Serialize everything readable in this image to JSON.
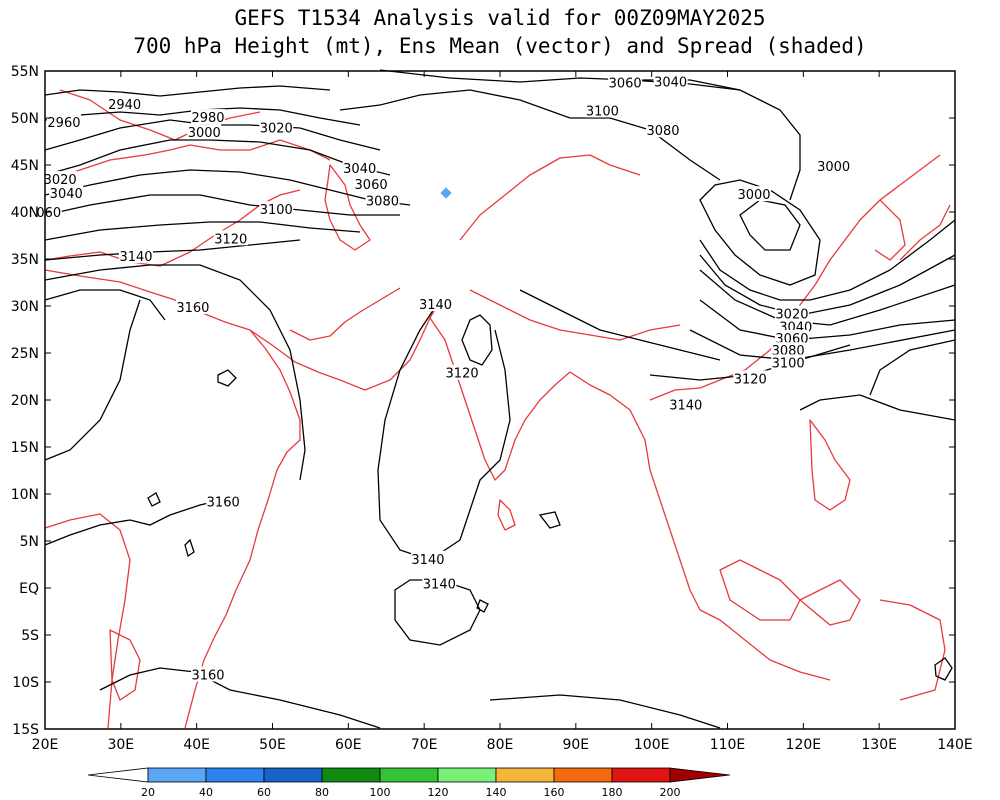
{
  "title": {
    "line1": "GEFS T1534 Analysis valid for 00Z09MAY2025",
    "line2": "700 hPa Height (mt), Ens Mean (vector) and Spread (shaded)"
  },
  "axes": {
    "lat_labels": [
      "55N",
      "50N",
      "45N",
      "40N",
      "35N",
      "30N",
      "25N",
      "20N",
      "15N",
      "10N",
      "5N",
      "EQ",
      "5S",
      "10S",
      "15S"
    ],
    "lon_labels": [
      "20E",
      "30E",
      "40E",
      "50E",
      "60E",
      "70E",
      "80E",
      "90E",
      "100E",
      "110E",
      "120E",
      "130E",
      "140E"
    ]
  },
  "contour_labels": [
    {
      "text": "2940",
      "lon": 30.5,
      "lat": 51.5
    },
    {
      "text": "2960",
      "lon": 22.5,
      "lat": 49.6
    },
    {
      "text": "2980",
      "lon": 41.5,
      "lat": 50.1
    },
    {
      "text": "3000",
      "lon": 41.0,
      "lat": 48.5
    },
    {
      "text": "3020",
      "lon": 50.5,
      "lat": 49.0
    },
    {
      "text": "3020",
      "lon": 22.0,
      "lat": 43.5
    },
    {
      "text": "3040",
      "lon": 22.8,
      "lat": 42.0
    },
    {
      "text": "060",
      "lon": 20.5,
      "lat": 40.0
    },
    {
      "text": "3040",
      "lon": 61.5,
      "lat": 44.7
    },
    {
      "text": "3060",
      "lon": 63.0,
      "lat": 43.0
    },
    {
      "text": "3080",
      "lon": 64.5,
      "lat": 41.2
    },
    {
      "text": "3100",
      "lon": 50.5,
      "lat": 40.3
    },
    {
      "text": "3120",
      "lon": 44.5,
      "lat": 37.2
    },
    {
      "text": "3140",
      "lon": 32.0,
      "lat": 35.3
    },
    {
      "text": "3160",
      "lon": 39.5,
      "lat": 29.9
    },
    {
      "text": "3140",
      "lon": 71.5,
      "lat": 30.2
    },
    {
      "text": "3120",
      "lon": 75.0,
      "lat": 22.9
    },
    {
      "text": "3060",
      "lon": 96.5,
      "lat": 53.8
    },
    {
      "text": "3040",
      "lon": 102.5,
      "lat": 53.9
    },
    {
      "text": "3100",
      "lon": 93.5,
      "lat": 50.8
    },
    {
      "text": "3080",
      "lon": 101.5,
      "lat": 48.7
    },
    {
      "text": "3000",
      "lon": 124.0,
      "lat": 44.9
    },
    {
      "text": "3000",
      "lon": 113.5,
      "lat": 41.9
    },
    {
      "text": "3020",
      "lon": 118.5,
      "lat": 29.2
    },
    {
      "text": "3040",
      "lon": 119.0,
      "lat": 27.8
    },
    {
      "text": "3060",
      "lon": 118.5,
      "lat": 26.6
    },
    {
      "text": "3080",
      "lon": 118.0,
      "lat": 25.3
    },
    {
      "text": "3100",
      "lon": 118.0,
      "lat": 24.0
    },
    {
      "text": "3120",
      "lon": 113.0,
      "lat": 22.3
    },
    {
      "text": "3140",
      "lon": 104.5,
      "lat": 19.5
    },
    {
      "text": "3160",
      "lon": 43.5,
      "lat": 9.2
    },
    {
      "text": "3140",
      "lon": 70.5,
      "lat": 3.1
    },
    {
      "text": "3140",
      "lon": 72.0,
      "lat": 0.5
    },
    {
      "text": "3160",
      "lon": 41.5,
      "lat": -9.2
    }
  ],
  "colorbar": {
    "labels": [
      "20",
      "40",
      "60",
      "80",
      "100",
      "120",
      "140",
      "160",
      "180",
      "200"
    ],
    "colors": [
      "#ffffff",
      "#5aa5f5",
      "#2e82ec",
      "#1764c8",
      "#108a10",
      "#35c235",
      "#78f078",
      "#f5b53a",
      "#f56a10",
      "#e01414",
      "#a00000"
    ]
  },
  "colors": {
    "coast": "#e8393b",
    "contour": "#000000",
    "spread_marker": "#5aa5f5"
  }
}
